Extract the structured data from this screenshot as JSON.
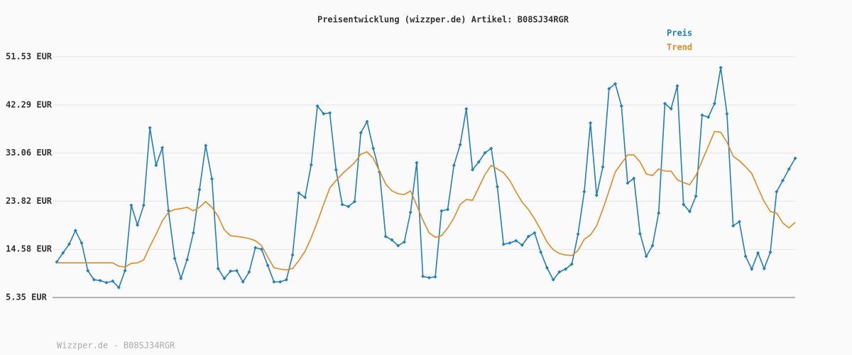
{
  "chart_data": {
    "type": "line",
    "title": "Preisentwicklung (wizzper.de) Artikel: B08SJ34RGR",
    "footer": "Wizzper.de - B08SJ34RGR",
    "ylim": [
      5.35,
      51.53
    ],
    "yticks": [
      {
        "value": 5.35,
        "label": "5.35 EUR"
      },
      {
        "value": 14.58,
        "label": "14.58 EUR"
      },
      {
        "value": 23.82,
        "label": "23.82 EUR"
      },
      {
        "value": 33.06,
        "label": "33.06 EUR"
      },
      {
        "value": 42.29,
        "label": "42.29 EUR"
      },
      {
        "value": 51.53,
        "label": "51.53 EUR"
      }
    ],
    "grid": true,
    "legend": "top-right",
    "series": [
      {
        "name": "Preis",
        "color": "#1f7ec0",
        "markers": true,
        "values": [
          12.16,
          13.9,
          15.6,
          18.2,
          15.8,
          10.5,
          8.75,
          8.6,
          8.2,
          8.5,
          7.25,
          10.5,
          23.05,
          19.25,
          23.05,
          37.9,
          30.7,
          34.1,
          22.0,
          12.85,
          9.0,
          12.6,
          17.75,
          26.05,
          34.5,
          28.1,
          10.9,
          9.0,
          10.4,
          10.5,
          8.35,
          10.25,
          14.9,
          14.6,
          11.5,
          8.35,
          8.35,
          8.75,
          13.5,
          25.4,
          24.55,
          30.8,
          42.1,
          40.6,
          40.75,
          29.85,
          23.2,
          22.8,
          23.75,
          36.95,
          39.1,
          33.95,
          29.45,
          17.05,
          16.4,
          15.3,
          16.0,
          21.7,
          31.2,
          9.4,
          9.15,
          9.3,
          21.95,
          22.25,
          30.7,
          34.65,
          41.55,
          29.85,
          31.35,
          33.1,
          33.95,
          26.6,
          15.55,
          15.8,
          16.25,
          15.4,
          17.05,
          17.75,
          14.05,
          11.05,
          8.75,
          10.25,
          10.8,
          11.75,
          17.5,
          25.65,
          38.85,
          24.95,
          30.4,
          45.4,
          46.35,
          42.1,
          27.3,
          28.2,
          17.6,
          13.25,
          15.3,
          21.55,
          42.55,
          41.55,
          45.95,
          23.2,
          21.85,
          24.8,
          40.35,
          39.95,
          42.55,
          49.45,
          40.6,
          19.1,
          19.9,
          13.25,
          10.8,
          13.9,
          10.9,
          14.05,
          25.65,
          27.8,
          30.0,
          32.05
        ]
      },
      {
        "name": "Trend",
        "color": "#e08a22",
        "markers": false,
        "values": [
          12.0,
          12.0,
          12.0,
          12.0,
          12.0,
          12.0,
          12.0,
          12.0,
          12.0,
          12.0,
          11.35,
          11.2,
          11.9,
          12.0,
          12.55,
          15.15,
          17.45,
          20.05,
          21.7,
          22.25,
          22.4,
          22.65,
          22.0,
          22.65,
          23.75,
          22.65,
          20.9,
          18.3,
          17.2,
          17.05,
          16.9,
          16.65,
          16.25,
          15.3,
          13.1,
          11.05,
          10.8,
          10.65,
          10.9,
          12.4,
          14.2,
          16.8,
          19.9,
          23.2,
          26.35,
          27.8,
          29.05,
          30.15,
          31.2,
          32.85,
          33.3,
          32.05,
          29.6,
          27.15,
          25.8,
          25.25,
          25.1,
          25.8,
          23.05,
          20.2,
          17.75,
          16.9,
          17.2,
          18.7,
          20.6,
          23.2,
          24.15,
          24.0,
          26.45,
          28.9,
          30.7,
          30.0,
          29.3,
          27.8,
          25.65,
          23.6,
          22.25,
          20.45,
          18.3,
          16.0,
          14.5,
          13.8,
          13.5,
          13.4,
          14.35,
          16.5,
          17.35,
          19.1,
          22.25,
          25.8,
          29.45,
          31.1,
          32.7,
          32.7,
          31.35,
          29.05,
          28.75,
          30.0,
          29.6,
          29.6,
          27.95,
          27.4,
          27.0,
          28.75,
          31.6,
          34.35,
          37.2,
          37.05,
          35.15,
          32.45,
          31.6,
          30.4,
          29.15,
          26.35,
          23.75,
          21.85,
          21.55,
          19.65,
          18.7,
          19.8
        ]
      }
    ]
  }
}
